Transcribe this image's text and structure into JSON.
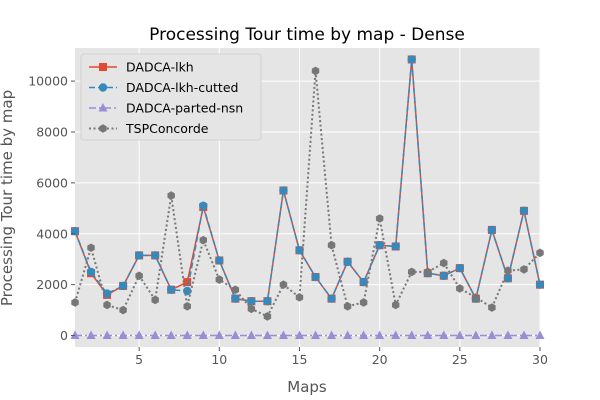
{
  "chart_data": {
    "type": "line",
    "title": "Processing Tour time by map - Dense",
    "xlabel": "Maps",
    "ylabel": "Processing Tour time by map",
    "xlim": [
      1,
      30
    ],
    "ylim": [
      -450,
      11300
    ],
    "xticks": [
      5,
      10,
      15,
      20,
      25,
      30
    ],
    "yticks": [
      0,
      2000,
      4000,
      6000,
      8000,
      10000
    ],
    "grid": true,
    "legend": "top-left",
    "x": [
      1,
      2,
      3,
      4,
      5,
      6,
      7,
      8,
      9,
      10,
      11,
      12,
      13,
      14,
      15,
      16,
      17,
      18,
      19,
      20,
      21,
      22,
      23,
      24,
      25,
      26,
      27,
      28,
      29,
      30
    ],
    "series": [
      {
        "name": "DADCA-lkh",
        "color": "#e24a33",
        "marker": "square",
        "linestyle": "solid",
        "values": [
          4100,
          2450,
          1600,
          1950,
          3150,
          3150,
          1800,
          2100,
          5050,
          2950,
          1450,
          1350,
          1350,
          5700,
          3350,
          2300,
          1450,
          2900,
          2100,
          3550,
          3500,
          10850,
          2450,
          2350,
          2650,
          1450,
          4150,
          2250,
          4900,
          2000
        ]
      },
      {
        "name": "DADCA-lkh-cutted",
        "color": "#348abd",
        "marker": "circle",
        "linestyle": "dashed",
        "values": [
          4100,
          2500,
          1650,
          1950,
          3150,
          3150,
          1800,
          1750,
          5100,
          2950,
          1450,
          1350,
          1350,
          5700,
          3350,
          2300,
          1450,
          2900,
          2100,
          3550,
          3500,
          10850,
          2450,
          2350,
          2650,
          1450,
          4150,
          2250,
          4900,
          2000
        ]
      },
      {
        "name": "DADCA-parted-nsn",
        "color": "#988ed5",
        "marker": "triangle",
        "linestyle": "dashdot",
        "values": [
          0,
          0,
          0,
          0,
          0,
          0,
          0,
          0,
          0,
          0,
          0,
          0,
          0,
          0,
          0,
          0,
          0,
          0,
          0,
          0,
          0,
          0,
          0,
          0,
          0,
          0,
          0,
          0,
          0,
          0
        ]
      },
      {
        "name": "TSPConcorde",
        "color": "#777777",
        "marker": "hexagon",
        "linestyle": "dotted",
        "values": [
          1300,
          3450,
          1200,
          1000,
          2350,
          1400,
          5500,
          1150,
          3750,
          2200,
          1800,
          1050,
          750,
          2000,
          1500,
          10400,
          3550,
          1150,
          1300,
          4600,
          1200,
          2500,
          2500,
          2850,
          1850,
          1500,
          1100,
          2550,
          2600,
          3250
        ]
      }
    ]
  }
}
